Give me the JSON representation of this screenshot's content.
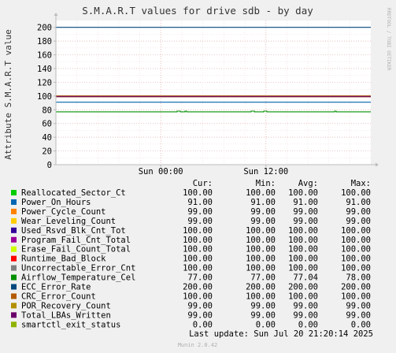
{
  "chart_data": {
    "type": "line",
    "title": "S.M.A.R.T values for drive sdb - by day",
    "ylabel": "Attribute S.M.A.R.T value",
    "side_label": "RRDTOOL / TOBI OETIKER",
    "footer": "Munin 2.0.42",
    "last_update": "Last update: Sun Jul 20 21:20:14 2025",
    "ylim": [
      0,
      210
    ],
    "yticks": [
      0,
      20,
      40,
      60,
      80,
      100,
      120,
      140,
      160,
      180,
      200
    ],
    "x_ticks": [
      {
        "label": "Sun 00:00",
        "pos": 0.333
      },
      {
        "label": "Sun 12:00",
        "pos": 0.667
      }
    ],
    "grid": true,
    "columns": [
      "Cur:",
      "Min:",
      "Avg:",
      "Max:"
    ],
    "series": [
      {
        "name": "Reallocated_Sector_Ct",
        "color": "#00cc00",
        "cur": "100.00",
        "min": "100.00",
        "avg": "100.00",
        "max": "100.00",
        "value": 100
      },
      {
        "name": "Power_On_Hours",
        "color": "#0066b3",
        "cur": "91.00",
        "min": "91.00",
        "avg": "91.00",
        "max": "91.00",
        "value": 91
      },
      {
        "name": "Power_Cycle_Count",
        "color": "#ff8000",
        "cur": "99.00",
        "min": "99.00",
        "avg": "99.00",
        "max": "99.00",
        "value": 99
      },
      {
        "name": "Wear_Leveling_Count",
        "color": "#ffcc00",
        "cur": "99.00",
        "min": "99.00",
        "avg": "99.00",
        "max": "99.00",
        "value": 99
      },
      {
        "name": "Used_Rsvd_Blk_Cnt_Tot",
        "color": "#330099",
        "cur": "100.00",
        "min": "100.00",
        "avg": "100.00",
        "max": "100.00",
        "value": 100
      },
      {
        "name": "Program_Fail_Cnt_Total",
        "color": "#990099",
        "cur": "100.00",
        "min": "100.00",
        "avg": "100.00",
        "max": "100.00",
        "value": 100
      },
      {
        "name": "Erase_Fail_Count_Total",
        "color": "#ccff00",
        "cur": "100.00",
        "min": "100.00",
        "avg": "100.00",
        "max": "100.00",
        "value": 100
      },
      {
        "name": "Runtime_Bad_Block",
        "color": "#ff0000",
        "cur": "100.00",
        "min": "100.00",
        "avg": "100.00",
        "max": "100.00",
        "value": 100
      },
      {
        "name": "Uncorrectable_Error_Cnt",
        "color": "#808080",
        "cur": "100.00",
        "min": "100.00",
        "avg": "100.00",
        "max": "100.00",
        "value": 100
      },
      {
        "name": "Airflow_Temperature_Cel",
        "color": "#008f00",
        "cur": "77.00",
        "min": "77.00",
        "avg": "77.04",
        "max": "78.00",
        "value": 77,
        "bumps": [
          [
            0.385,
            0.395,
            78
          ],
          [
            0.41,
            0.415,
            78
          ],
          [
            0.62,
            0.63,
            78
          ],
          [
            0.66,
            0.67,
            78
          ],
          [
            0.885,
            0.89,
            78
          ]
        ]
      },
      {
        "name": "ECC_Error_Rate",
        "color": "#00487d",
        "cur": "200.00",
        "min": "200.00",
        "avg": "200.00",
        "max": "200.00",
        "value": 200
      },
      {
        "name": "CRC_Error_Count",
        "color": "#b35a00",
        "cur": "100.00",
        "min": "100.00",
        "avg": "100.00",
        "max": "100.00",
        "value": 100
      },
      {
        "name": "POR_Recovery_Count",
        "color": "#b38f00",
        "cur": "99.00",
        "min": "99.00",
        "avg": "99.00",
        "max": "99.00",
        "value": 99
      },
      {
        "name": "Total_LBAs_Written",
        "color": "#6b006b",
        "cur": "99.00",
        "min": "99.00",
        "avg": "99.00",
        "max": "99.00",
        "value": 99
      },
      {
        "name": "smartctl_exit_status",
        "color": "#8fb300",
        "cur": "0.00",
        "min": "0.00",
        "avg": "0.00",
        "max": "0.00",
        "value": 0
      }
    ]
  }
}
